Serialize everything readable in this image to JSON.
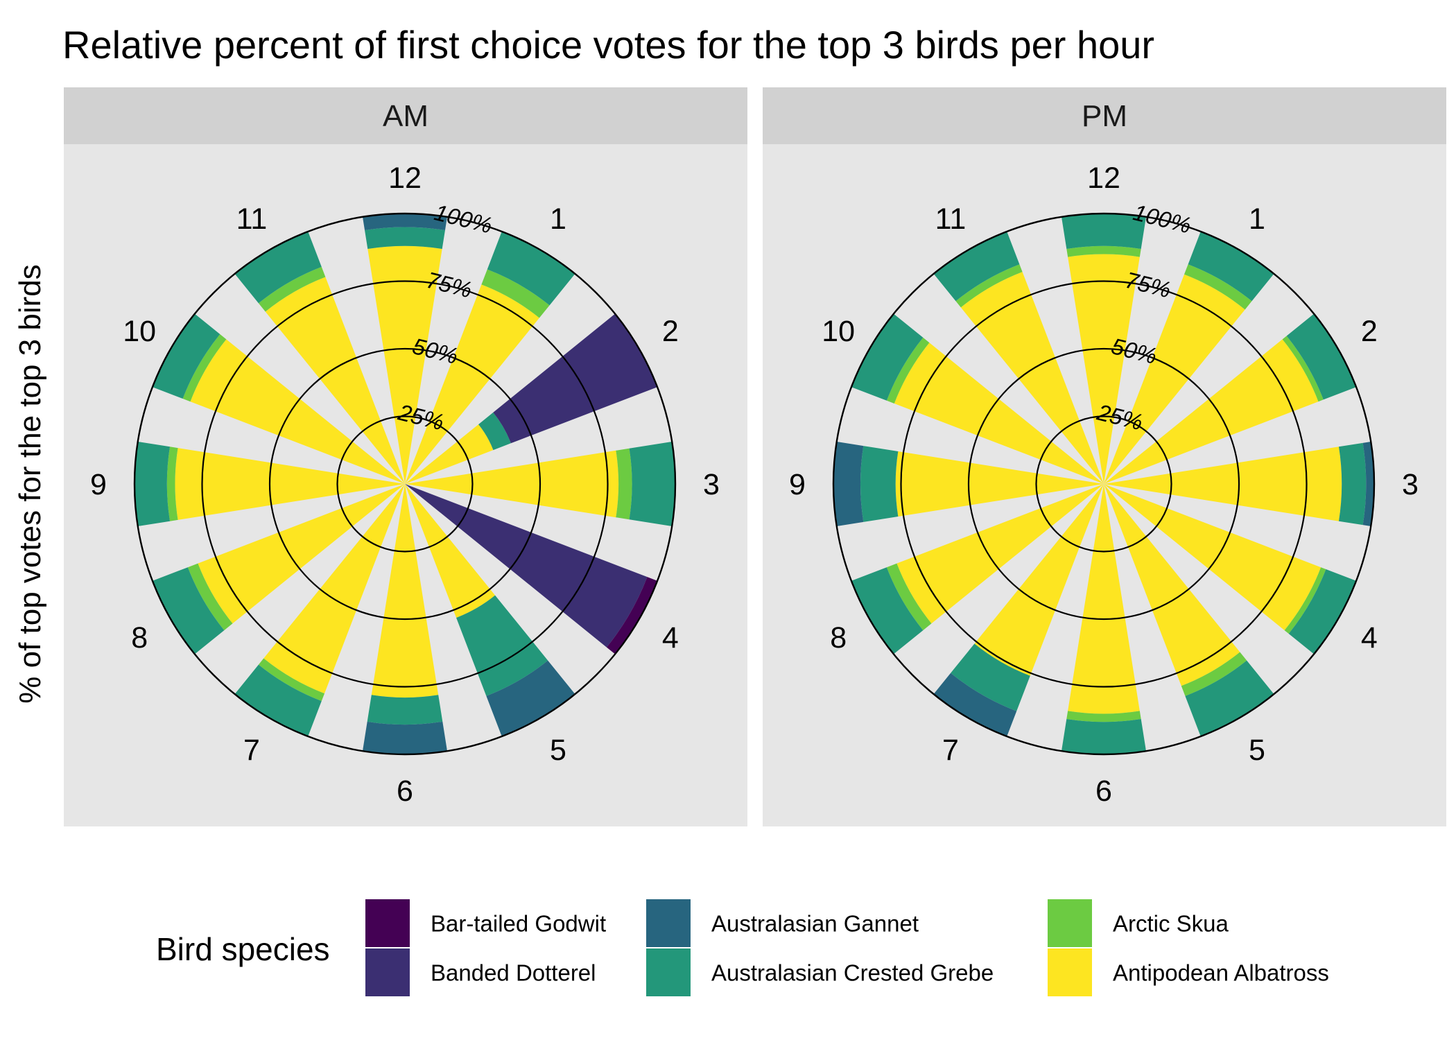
{
  "chart_data": {
    "type": "bar",
    "coord": "polar",
    "title": "Relative percent of first choice votes for the top 3 birds per hour",
    "ylabel": "% of top votes for the top 3 birds",
    "xlabel": "",
    "ylim": [
      0,
      100
    ],
    "radial_ticks": [
      25,
      50,
      75,
      100
    ],
    "radial_tick_labels": [
      "25%",
      "50%",
      "75%",
      "100%"
    ],
    "grid": true,
    "categories": [
      "12",
      "1",
      "2",
      "3",
      "4",
      "5",
      "6",
      "7",
      "8",
      "9",
      "10",
      "11"
    ],
    "legend": {
      "title": "Bird species",
      "position": "bottom",
      "entries": [
        {
          "name": "Bar-tailed Godwit",
          "color": "#440154"
        },
        {
          "name": "Banded Dotterel",
          "color": "#3b2f72"
        },
        {
          "name": "Australasian Gannet",
          "color": "#27657f"
        },
        {
          "name": "Australasian Crested Grebe",
          "color": "#23977a"
        },
        {
          "name": "Arctic Skua",
          "color": "#6ccb42"
        },
        {
          "name": "Antipodean Albatross",
          "color": "#fde521"
        }
      ]
    },
    "panels": [
      {
        "label": "AM",
        "bars": [
          [
            {
              "species": "Antipodean Albatross",
              "value": 88
            },
            {
              "species": "Australasian Crested Grebe",
              "value": 7
            },
            {
              "species": "Australasian Gannet",
              "value": 5
            }
          ],
          [
            {
              "species": "Antipodean Albatross",
              "value": 79
            },
            {
              "species": "Arctic Skua",
              "value": 6
            },
            {
              "species": "Australasian Crested Grebe",
              "value": 15
            }
          ],
          [
            {
              "species": "Antipodean Albatross",
              "value": 35
            },
            {
              "species": "Australasian Crested Grebe",
              "value": 7
            },
            {
              "species": "Banded Dotterel",
              "value": 58
            }
          ],
          [
            {
              "species": "Antipodean Albatross",
              "value": 79
            },
            {
              "species": "Arctic Skua",
              "value": 5
            },
            {
              "species": "Australasian Crested Grebe",
              "value": 16
            }
          ],
          [
            {
              "species": "Banded Dotterel",
              "value": 96
            },
            {
              "species": "Bar-tailed Godwit",
              "value": 4
            }
          ],
          [
            {
              "species": "Antipodean Albatross",
              "value": 53
            },
            {
              "species": "Australasian Crested Grebe",
              "value": 31
            },
            {
              "species": "Australasian Gannet",
              "value": 16
            }
          ],
          [
            {
              "species": "Antipodean Albatross",
              "value": 79
            },
            {
              "species": "Australasian Crested Grebe",
              "value": 10
            },
            {
              "species": "Australasian Gannet",
              "value": 11
            }
          ],
          [
            {
              "species": "Antipodean Albatross",
              "value": 83
            },
            {
              "species": "Arctic Skua",
              "value": 3
            },
            {
              "species": "Australasian Crested Grebe",
              "value": 14
            }
          ],
          [
            {
              "species": "Antipodean Albatross",
              "value": 82
            },
            {
              "species": "Arctic Skua",
              "value": 4
            },
            {
              "species": "Australasian Crested Grebe",
              "value": 14
            }
          ],
          [
            {
              "species": "Antipodean Albatross",
              "value": 85
            },
            {
              "species": "Arctic Skua",
              "value": 3
            },
            {
              "species": "Australasian Crested Grebe",
              "value": 12
            }
          ],
          [
            {
              "species": "Antipodean Albatross",
              "value": 85
            },
            {
              "species": "Arctic Skua",
              "value": 3
            },
            {
              "species": "Australasian Crested Grebe",
              "value": 12
            }
          ],
          [
            {
              "species": "Antipodean Albatross",
              "value": 82
            },
            {
              "species": "Arctic Skua",
              "value": 4
            },
            {
              "species": "Australasian Crested Grebe",
              "value": 14
            }
          ]
        ]
      },
      {
        "label": "PM",
        "bars": [
          [
            {
              "species": "Antipodean Albatross",
              "value": 85
            },
            {
              "species": "Arctic Skua",
              "value": 3
            },
            {
              "species": "Australasian Crested Grebe",
              "value": 12
            }
          ],
          [
            {
              "species": "Antipodean Albatross",
              "value": 83
            },
            {
              "species": "Arctic Skua",
              "value": 4
            },
            {
              "species": "Australasian Crested Grebe",
              "value": 13
            }
          ],
          [
            {
              "species": "Antipodean Albatross",
              "value": 85
            },
            {
              "species": "Arctic Skua",
              "value": 2
            },
            {
              "species": "Australasian Crested Grebe",
              "value": 13
            }
          ],
          [
            {
              "species": "Antipodean Albatross",
              "value": 88
            },
            {
              "species": "Australasian Crested Grebe",
              "value": 9
            },
            {
              "species": "Australasian Gannet",
              "value": 3
            }
          ],
          [
            {
              "species": "Antipodean Albatross",
              "value": 86
            },
            {
              "species": "Arctic Skua",
              "value": 2
            },
            {
              "species": "Australasian Crested Grebe",
              "value": 12
            }
          ],
          [
            {
              "species": "Antipodean Albatross",
              "value": 80
            },
            {
              "species": "Arctic Skua",
              "value": 4
            },
            {
              "species": "Australasian Crested Grebe",
              "value": 16
            }
          ],
          [
            {
              "species": "Antipodean Albatross",
              "value": 85
            },
            {
              "species": "Arctic Skua",
              "value": 3
            },
            {
              "species": "Australasian Crested Grebe",
              "value": 12
            }
          ],
          [
            {
              "species": "Antipodean Albatross",
              "value": 76
            },
            {
              "species": "Australasian Crested Grebe",
              "value": 14
            },
            {
              "species": "Australasian Gannet",
              "value": 10
            }
          ],
          [
            {
              "species": "Antipodean Albatross",
              "value": 82
            },
            {
              "species": "Arctic Skua",
              "value": 4
            },
            {
              "species": "Australasian Crested Grebe",
              "value": 14
            }
          ],
          [
            {
              "species": "Antipodean Albatross",
              "value": 77
            },
            {
              "species": "Australasian Crested Grebe",
              "value": 13
            },
            {
              "species": "Australasian Gannet",
              "value": 10
            }
          ],
          [
            {
              "species": "Antipodean Albatross",
              "value": 83
            },
            {
              "species": "Arctic Skua",
              "value": 3
            },
            {
              "species": "Australasian Crested Grebe",
              "value": 14
            }
          ],
          [
            {
              "species": "Antipodean Albatross",
              "value": 84
            },
            {
              "species": "Arctic Skua",
              "value": 3
            },
            {
              "species": "Australasian Crested Grebe",
              "value": 13
            }
          ]
        ]
      }
    ]
  }
}
